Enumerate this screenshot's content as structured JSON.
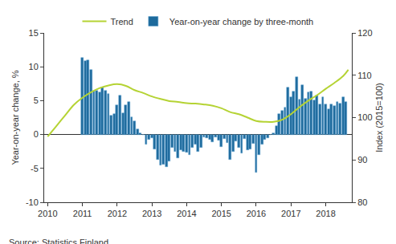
{
  "chart_data": {
    "type": "bar",
    "source": "Source: Statistics Finland",
    "y_label": "Year-on-year change, %",
    "y2_label": "Index (2015=100)",
    "legend": "top",
    "grid": false,
    "xlim": [
      2009.9,
      2018.75
    ],
    "xticks": [
      2010,
      2011,
      2012,
      2013,
      2014,
      2015,
      2016,
      2017,
      2018
    ],
    "ylim": [
      -10,
      15
    ],
    "yticks": [
      -10,
      -5,
      0,
      5,
      10,
      15
    ],
    "y2lim": [
      80,
      120
    ],
    "y2ticks": [
      80,
      90,
      100,
      110,
      120
    ],
    "series": [
      {
        "name": "Trend",
        "type": "line",
        "axis": "y2",
        "color": "#b5d334",
        "x": [
          2010.0,
          2010.25,
          2010.5,
          2010.75,
          2011.0,
          2011.25,
          2011.5,
          2011.75,
          2012.0,
          2012.25,
          2012.5,
          2012.75,
          2013.0,
          2013.25,
          2013.5,
          2013.75,
          2014.0,
          2014.25,
          2014.5,
          2014.75,
          2015.0,
          2015.25,
          2015.5,
          2015.75,
          2016.0,
          2016.25,
          2016.5,
          2016.75,
          2017.0,
          2017.25,
          2017.5,
          2017.75,
          2018.0,
          2018.25,
          2018.5,
          2018.65
        ],
        "values": [
          95.5,
          98,
          100.5,
          103,
          104.7,
          106,
          107,
          107.6,
          107.9,
          107.5,
          106.5,
          105.8,
          105,
          104.4,
          103.9,
          103.7,
          103.4,
          103.3,
          103.1,
          102.8,
          102.2,
          101.3,
          100.8,
          100,
          99.2,
          99.0,
          99.0,
          99.5,
          100.8,
          102.5,
          104,
          105.3,
          106.8,
          108.2,
          109.8,
          111.3
        ]
      },
      {
        "name": "Year-on-year change by three-month",
        "type": "bar",
        "color": "#1d6a9c",
        "x": [
          2011.0,
          2011.083,
          2011.167,
          2011.25,
          2011.333,
          2011.417,
          2011.5,
          2011.583,
          2011.667,
          2011.75,
          2011.833,
          2011.917,
          2012.0,
          2012.083,
          2012.167,
          2012.25,
          2012.333,
          2012.417,
          2012.5,
          2012.583,
          2012.667,
          2012.75,
          2012.833,
          2012.917,
          2013.0,
          2013.083,
          2013.167,
          2013.25,
          2013.333,
          2013.417,
          2013.5,
          2013.583,
          2013.667,
          2013.75,
          2013.833,
          2013.917,
          2014.0,
          2014.083,
          2014.167,
          2014.25,
          2014.333,
          2014.417,
          2014.5,
          2014.583,
          2014.667,
          2014.75,
          2014.833,
          2014.917,
          2015.0,
          2015.083,
          2015.167,
          2015.25,
          2015.333,
          2015.417,
          2015.5,
          2015.583,
          2015.667,
          2015.75,
          2015.833,
          2015.917,
          2016.0,
          2016.083,
          2016.167,
          2016.25,
          2016.333,
          2016.417,
          2016.5,
          2016.583,
          2016.667,
          2016.75,
          2016.833,
          2016.917,
          2017.0,
          2017.083,
          2017.167,
          2017.25,
          2017.333,
          2017.417,
          2017.5,
          2017.583,
          2017.667,
          2017.75,
          2017.833,
          2017.917,
          2018.0,
          2018.083,
          2018.167,
          2018.25,
          2018.333,
          2018.417,
          2018.5,
          2018.583
        ],
        "values": [
          11.3,
          10.9,
          11.0,
          9.6,
          6.5,
          6.5,
          6.2,
          7.0,
          6.5,
          6.0,
          2.8,
          3.0,
          4.3,
          5.8,
          3.2,
          4.3,
          4.8,
          2.6,
          2.0,
          0.8,
          0.2,
          0.0,
          -1.5,
          -0.7,
          -0.5,
          -2.2,
          -3.7,
          -4.6,
          -4.4,
          -4.8,
          -4.0,
          -2.0,
          -2.5,
          -3.5,
          -2.3,
          -2.5,
          -2.6,
          -3.0,
          -2.0,
          -1.5,
          -2.5,
          -2.0,
          -0.4,
          -0.5,
          -0.7,
          -1.1,
          -0.4,
          -0.9,
          -1.8,
          -0.6,
          -1.2,
          -3.7,
          -2.5,
          -1.0,
          -2.0,
          -2.8,
          -0.6,
          -2.3,
          -2.2,
          -1.4,
          -5.6,
          -3.0,
          -1.5,
          -0.8,
          -0.5,
          0.0,
          0.2,
          1.3,
          3.0,
          3.5,
          4.0,
          6.9,
          5.5,
          6.3,
          8.5,
          5.2,
          7.3,
          5.3,
          6.2,
          6.3,
          5.0,
          5.8,
          4.5,
          5.5,
          4.5,
          3.7,
          4.5,
          4.2,
          4.8,
          4.6,
          5.5,
          4.8
        ]
      }
    ]
  }
}
